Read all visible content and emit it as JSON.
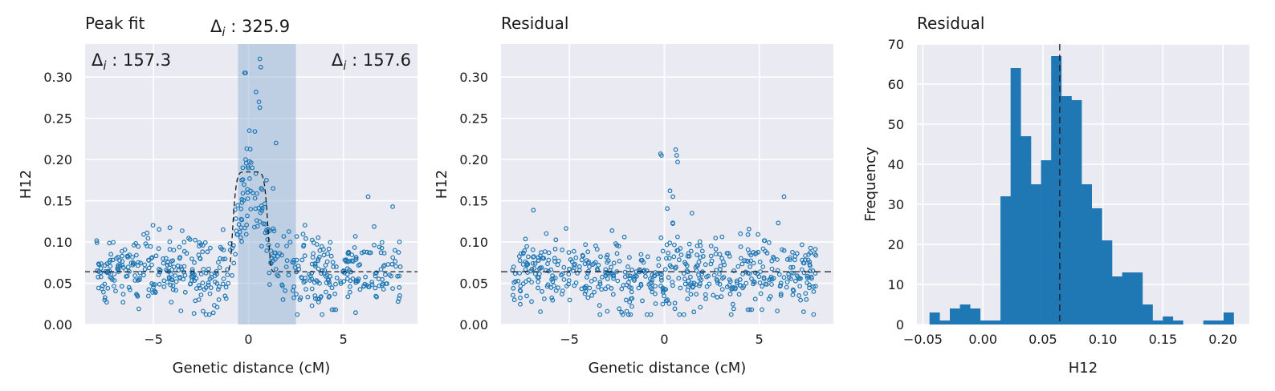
{
  "colors": {
    "axes_face": "#eaeaf2",
    "grid": "#ffffff",
    "marker": "#1f77b4",
    "bar": "#1f77b4",
    "highlight": "#92b3d6",
    "line": "#1a1a1a"
  },
  "chart_data": [
    {
      "type": "scatter",
      "title": "Peak fit",
      "xlabel": "Genetic distance (cM)",
      "ylabel": "H12",
      "xlim": [
        -8.6,
        8.9
      ],
      "ylim": [
        0,
        0.34
      ],
      "xticks": [
        -5,
        0,
        5
      ],
      "xtick_labels": [
        "−5",
        "0",
        "5"
      ],
      "yticks": [
        0,
        0.05,
        0.1,
        0.15,
        0.2,
        0.25,
        0.3
      ],
      "ytick_labels": [
        "0.00",
        "0.05",
        "0.10",
        "0.15",
        "0.20",
        "0.25",
        "0.30"
      ],
      "grid": true,
      "highlight_span": [
        -0.55,
        2.5
      ],
      "annotations": {
        "center_label": "Δ",
        "center_sub": "i",
        "center_value": " : 325.9",
        "left_label": "Δ",
        "left_sub": "i",
        "left_value": " : 157.3",
        "right_label": "Δ",
        "right_sub": "i",
        "right_value": " : 157.6"
      },
      "fit_curve": {
        "baseline": 0.064,
        "peak": 0.185,
        "center": 0.1,
        "width": 0.95
      },
      "points_generator": {
        "n": 560,
        "x_range": [
          -8,
          8
        ],
        "baseline": 0.064,
        "noise": 0.028,
        "seed": 7
      },
      "extra_points": [
        {
          "x": -0.2,
          "y": 0.305
        },
        {
          "x": -0.15,
          "y": 0.305
        },
        {
          "x": 0.6,
          "y": 0.322
        },
        {
          "x": 0.65,
          "y": 0.312
        },
        {
          "x": 0.4,
          "y": 0.282
        },
        {
          "x": 0.55,
          "y": 0.27
        },
        {
          "x": 0.6,
          "y": 0.263
        },
        {
          "x": 0.05,
          "y": 0.235
        },
        {
          "x": 1.45,
          "y": 0.22
        },
        {
          "x": -0.15,
          "y": 0.2
        },
        {
          "x": -0.3,
          "y": 0.19
        },
        {
          "x": 0.2,
          "y": 0.19
        },
        {
          "x": 0.95,
          "y": 0.175
        },
        {
          "x": 1.3,
          "y": 0.165
        },
        {
          "x": 6.3,
          "y": 0.155
        },
        {
          "x": 4.4,
          "y": 0.018
        },
        {
          "x": 4.5,
          "y": 0.018
        },
        {
          "x": 4.6,
          "y": 0.018
        },
        {
          "x": -2.5,
          "y": 0.097
        },
        {
          "x": -2.4,
          "y": 0.096
        },
        {
          "x": -2.6,
          "y": 0.095
        }
      ]
    },
    {
      "type": "scatter",
      "title": "Residual",
      "xlabel": "Genetic distance (cM)",
      "ylabel": "H12",
      "xlim": [
        -8.6,
        8.9
      ],
      "ylim": [
        0,
        0.34
      ],
      "xticks": [
        -5,
        0,
        5
      ],
      "xtick_labels": [
        "−5",
        "0",
        "5"
      ],
      "yticks": [
        0,
        0.05,
        0.1,
        0.15,
        0.2,
        0.25,
        0.3
      ],
      "ytick_labels": [
        "0.00",
        "0.05",
        "0.10",
        "0.15",
        "0.20",
        "0.25",
        "0.30"
      ],
      "grid": true,
      "hline": 0.064,
      "points_generator": {
        "n": 560,
        "x_range": [
          -8,
          8
        ],
        "baseline": 0.064,
        "noise": 0.028,
        "seed": 11
      },
      "extra_points": [
        {
          "x": -0.2,
          "y": 0.207
        },
        {
          "x": -0.15,
          "y": 0.205
        },
        {
          "x": 0.6,
          "y": 0.212
        },
        {
          "x": 0.65,
          "y": 0.205
        },
        {
          "x": 0.7,
          "y": 0.197
        },
        {
          "x": 0.3,
          "y": 0.162
        },
        {
          "x": 0.45,
          "y": 0.155
        },
        {
          "x": 1.45,
          "y": 0.135
        },
        {
          "x": 6.3,
          "y": 0.155
        },
        {
          "x": 4.4,
          "y": 0.018
        },
        {
          "x": 4.5,
          "y": 0.018
        },
        {
          "x": 4.6,
          "y": 0.018
        },
        {
          "x": -2.5,
          "y": 0.096
        },
        {
          "x": -2.4,
          "y": 0.095
        }
      ]
    },
    {
      "type": "bar",
      "title": "Residual",
      "xlabel": "H12",
      "ylabel": "Frequency",
      "xlim": [
        -0.055,
        0.222
      ],
      "ylim": [
        0,
        70
      ],
      "xticks": [
        -0.05,
        0,
        0.05,
        0.1,
        0.15,
        0.2
      ],
      "xtick_labels": [
        "−0.05",
        "0.00",
        "0.05",
        "0.10",
        "0.15",
        "0.20"
      ],
      "yticks": [
        0,
        10,
        20,
        30,
        40,
        50,
        60,
        70
      ],
      "ytick_labels": [
        "0",
        "10",
        "20",
        "30",
        "40",
        "50",
        "60",
        "70"
      ],
      "grid": true,
      "vline": 0.064,
      "bin_start": -0.0445,
      "bin_width": 0.00845,
      "values": [
        3,
        1,
        4,
        5,
        4,
        1,
        1,
        32,
        64,
        47,
        35,
        41,
        67,
        57,
        56,
        35,
        29,
        21,
        12,
        13,
        13,
        5,
        1,
        2,
        1,
        0,
        0,
        1,
        1,
        3
      ]
    }
  ]
}
